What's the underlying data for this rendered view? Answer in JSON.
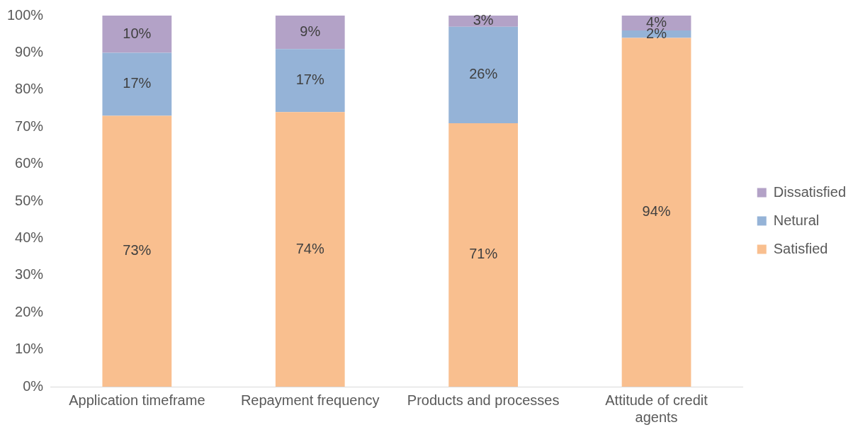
{
  "chart_data": {
    "type": "bar",
    "stacked": true,
    "categories": [
      "Application timeframe",
      "Repayment frequency",
      "Products and processes",
      "Attitude of credit agents"
    ],
    "series": [
      {
        "name": "Satisfied",
        "color": "#f9bf8f",
        "values": [
          73,
          74,
          71,
          94
        ],
        "value_labels": [
          "73%",
          "74%",
          "71%",
          "94%"
        ]
      },
      {
        "name": "Netural",
        "color": "#95b3d7",
        "values": [
          17,
          17,
          26,
          2
        ],
        "value_labels": [
          "17%",
          "17%",
          "26%",
          "2%"
        ]
      },
      {
        "name": "Dissatisfied",
        "color": "#b3a2c7",
        "values": [
          10,
          9,
          3,
          4
        ],
        "value_labels": [
          "10%",
          "9%",
          "3%",
          "4%"
        ]
      }
    ],
    "ylim": [
      0,
      100
    ],
    "yticks": [
      {
        "value": 0,
        "label": "0%"
      },
      {
        "value": 10,
        "label": "10%"
      },
      {
        "value": 20,
        "label": "20%"
      },
      {
        "value": 30,
        "label": "30%"
      },
      {
        "value": 40,
        "label": "40%"
      },
      {
        "value": 50,
        "label": "50%"
      },
      {
        "value": 60,
        "label": "60%"
      },
      {
        "value": 70,
        "label": "70%"
      },
      {
        "value": 80,
        "label": "80%"
      },
      {
        "value": 90,
        "label": "90%"
      },
      {
        "value": 100,
        "label": "100%"
      }
    ],
    "grid": false,
    "legend": "right"
  }
}
